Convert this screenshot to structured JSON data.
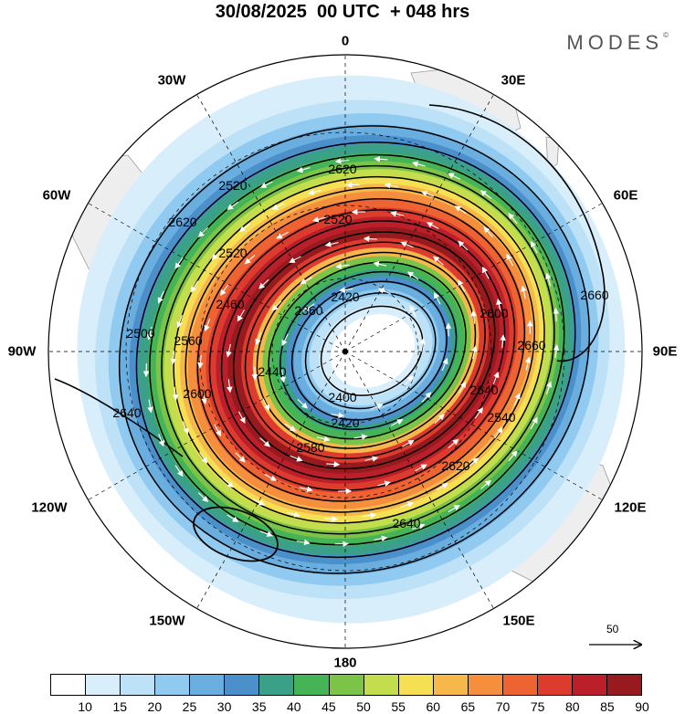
{
  "title": "30/08/2025  00 UTC  + 048 hrs",
  "brand": "MODES",
  "brand_mark": "©",
  "longitude_labels": {
    "lon0": "0",
    "lon30e": "30E",
    "lon60e": "60E",
    "lon90e": "90E",
    "lon120e": "120E",
    "lon150e": "150E",
    "lon180": "180",
    "lon150w": "150W",
    "lon120w": "120W",
    "lon90w": "90W",
    "lon60w": "60W",
    "lon30w": "30W"
  },
  "contour_labels": [
    "2360",
    "2400",
    "2420",
    "2420",
    "2440",
    "2460",
    "2500",
    "2520",
    "2520",
    "2520",
    "2540",
    "2560",
    "2580",
    "2600",
    "2600",
    "2620",
    "2620",
    "2620",
    "2640",
    "2640",
    "2640",
    "2660",
    "2660"
  ],
  "wind_speed_levels": [
    "10",
    "15",
    "20",
    "25",
    "30",
    "35",
    "40",
    "45",
    "50",
    "55",
    "60",
    "65",
    "70",
    "75",
    "80",
    "85",
    "90"
  ],
  "wind_colors": [
    "#ffffff",
    "#d9eefb",
    "#bde2f8",
    "#91caf0",
    "#6aaedf",
    "#4b8fcb",
    "#3aa087",
    "#45b456",
    "#7cc447",
    "#c3dd4c",
    "#f4e052",
    "#f6b84b",
    "#f58f3e",
    "#ee6332",
    "#dc3b2e",
    "#bb1f2a",
    "#971a1f"
  ],
  "vector_reference": "50",
  "map_info": {
    "projection": "south-polar-stereographic",
    "center_pole": "South Pole",
    "field_contours": "geopotential height (dam-scaled)",
    "field_shading": "wind speed"
  }
}
